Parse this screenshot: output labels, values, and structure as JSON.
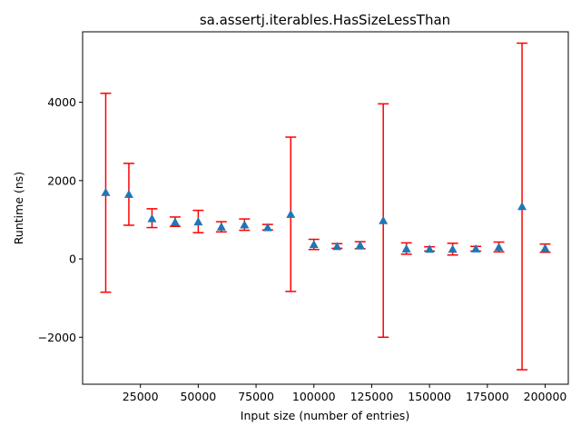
{
  "chart_data": {
    "type": "scatter",
    "title": "sa.assertj.iterables.HasSizeLessThan",
    "xlabel": "Input size (number of entries)",
    "ylabel": "Runtime (ns)",
    "xlim": [
      0,
      210000
    ],
    "ylim": [
      -3200,
      5800
    ],
    "xticks": [
      25000,
      50000,
      75000,
      100000,
      125000,
      150000,
      175000,
      200000
    ],
    "xtick_labels": [
      "25000",
      "50000",
      "75000",
      "100000",
      "125000",
      "150000",
      "175000",
      "200000"
    ],
    "yticks": [
      -2000,
      0,
      2000,
      4000
    ],
    "ytick_labels": [
      "−2000",
      "0",
      "2000",
      "4000"
    ],
    "grid": false,
    "colors": {
      "marker": "#1f77b4",
      "errorbar": "#ff0000"
    },
    "marker": "triangle-up",
    "series": [
      {
        "x": [
          10000,
          20000,
          30000,
          40000,
          50000,
          60000,
          70000,
          80000,
          90000,
          100000,
          110000,
          120000,
          130000,
          140000,
          150000,
          160000,
          170000,
          180000,
          190000,
          200000
        ],
        "y": [
          1700,
          1650,
          1030,
          940,
          950,
          820,
          870,
          800,
          1140,
          370,
          320,
          350,
          980,
          260,
          250,
          250,
          260,
          300,
          1340,
          270
        ],
        "err_low": [
          -850,
          860,
          800,
          830,
          670,
          690,
          730,
          740,
          -830,
          240,
          270,
          260,
          -2000,
          120,
          200,
          100,
          200,
          180,
          -2830,
          170
        ],
        "err_high": [
          4230,
          2440,
          1280,
          1070,
          1240,
          950,
          1020,
          880,
          3110,
          500,
          390,
          440,
          3960,
          410,
          310,
          400,
          320,
          430,
          5510,
          380
        ]
      }
    ]
  }
}
